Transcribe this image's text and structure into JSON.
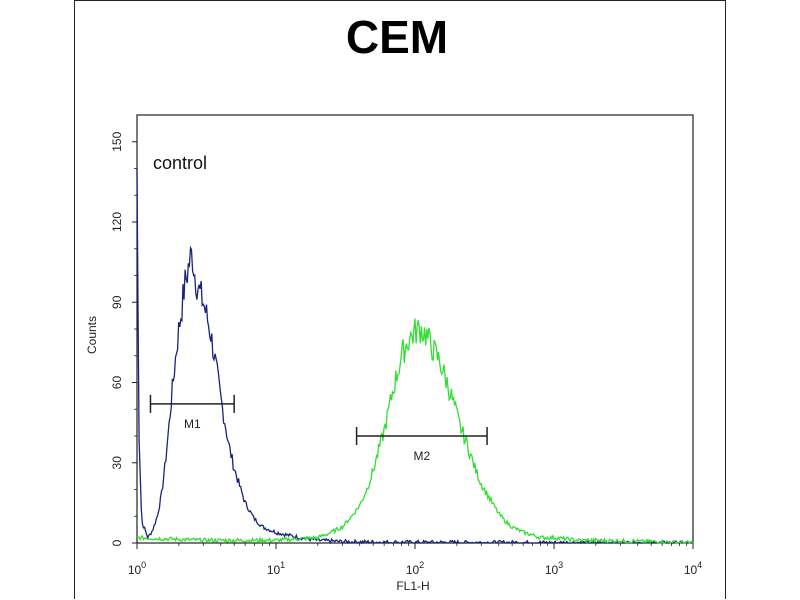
{
  "chart_data": {
    "type": "line",
    "title": "CEM",
    "xlabel": "FL1-H",
    "ylabel": "Counts",
    "x_scale": "log",
    "xlim": [
      1,
      10000
    ],
    "ylim": [
      0,
      160
    ],
    "x_ticks": [
      {
        "base": "10",
        "exp": "0",
        "value": 1
      },
      {
        "base": "10",
        "exp": "1",
        "value": 10
      },
      {
        "base": "10",
        "exp": "2",
        "value": 100
      },
      {
        "base": "10",
        "exp": "3",
        "value": 1000
      },
      {
        "base": "10",
        "exp": "4",
        "value": 10000
      }
    ],
    "y_ticks": [
      "0",
      "30",
      "60",
      "90",
      "120",
      "150"
    ],
    "annotation": "control",
    "grid": false,
    "series": [
      {
        "color": "#1a237e",
        "points": [
          [
            1.0,
            140
          ],
          [
            1.03,
            45
          ],
          [
            1.08,
            8
          ],
          [
            1.2,
            2
          ],
          [
            1.3,
            5
          ],
          [
            1.4,
            10
          ],
          [
            1.5,
            18
          ],
          [
            1.6,
            30
          ],
          [
            1.7,
            44
          ],
          [
            1.8,
            58
          ],
          [
            1.9,
            70
          ],
          [
            2.0,
            80
          ],
          [
            2.1,
            88
          ],
          [
            2.2,
            96
          ],
          [
            2.3,
            101
          ],
          [
            2.4,
            106
          ],
          [
            2.5,
            108
          ],
          [
            2.6,
            101
          ],
          [
            2.7,
            97
          ],
          [
            2.8,
            94
          ],
          [
            3.0,
            90
          ],
          [
            3.2,
            84
          ],
          [
            3.4,
            78
          ],
          [
            3.6,
            70
          ],
          [
            3.8,
            62
          ],
          [
            4.0,
            54
          ],
          [
            4.3,
            45
          ],
          [
            4.6,
            36
          ],
          [
            5.0,
            28
          ],
          [
            5.5,
            21
          ],
          [
            6.0,
            15
          ],
          [
            7.0,
            9
          ],
          [
            8.0,
            6
          ],
          [
            10,
            4
          ],
          [
            12,
            3
          ],
          [
            15,
            2
          ],
          [
            20,
            1
          ],
          [
            30,
            0.5
          ],
          [
            60,
            0.3
          ],
          [
            10000,
            0
          ]
        ]
      },
      {
        "color": "#33dd33",
        "points": [
          [
            1.0,
            2
          ],
          [
            3,
            1
          ],
          [
            10,
            1
          ],
          [
            20,
            2
          ],
          [
            25,
            4
          ],
          [
            30,
            6
          ],
          [
            35,
            10
          ],
          [
            40,
            14
          ],
          [
            45,
            20
          ],
          [
            50,
            27
          ],
          [
            55,
            35
          ],
          [
            60,
            42
          ],
          [
            65,
            50
          ],
          [
            70,
            58
          ],
          [
            75,
            64
          ],
          [
            80,
            70
          ],
          [
            90,
            76
          ],
          [
            100,
            79
          ],
          [
            110,
            80
          ],
          [
            120,
            78
          ],
          [
            130,
            74
          ],
          [
            150,
            68
          ],
          [
            170,
            60
          ],
          [
            190,
            52
          ],
          [
            210,
            44
          ],
          [
            240,
            36
          ],
          [
            270,
            28
          ],
          [
            300,
            22
          ],
          [
            350,
            16
          ],
          [
            400,
            11
          ],
          [
            450,
            8
          ],
          [
            500,
            6
          ],
          [
            600,
            4
          ],
          [
            700,
            3
          ],
          [
            800,
            2
          ],
          [
            1000,
            2
          ],
          [
            1500,
            1
          ],
          [
            2000,
            1
          ],
          [
            5000,
            0.5
          ],
          [
            10000,
            0
          ]
        ]
      }
    ],
    "markers": [
      {
        "label": "M1",
        "x_start": 1.25,
        "x_end": 5.0,
        "y": 52
      },
      {
        "label": "M2",
        "x_start": 38,
        "x_end": 330,
        "y": 40
      }
    ]
  }
}
